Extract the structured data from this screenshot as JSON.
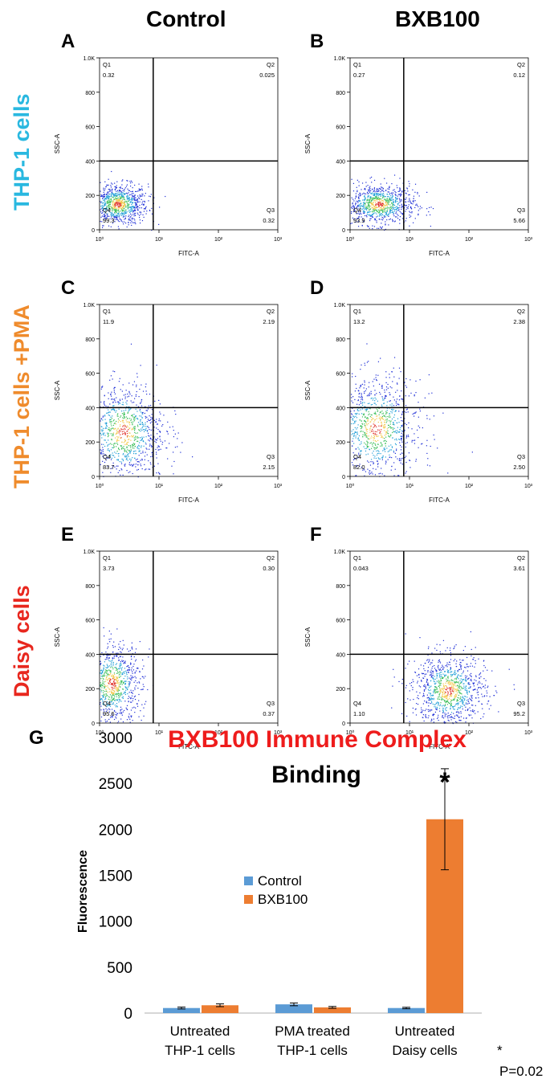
{
  "column_headers": [
    "Control",
    "BXB100"
  ],
  "row_labels": [
    {
      "text": "THP-1 cells",
      "color": "#29b8e0"
    },
    {
      "text": "THP-1 cells +PMA",
      "color": "#ef8b2c"
    },
    {
      "text": "Daisy cells",
      "color": "#e8271e"
    }
  ],
  "panel_letters": [
    "A",
    "B",
    "C",
    "D",
    "E",
    "F",
    "G"
  ],
  "annotations": {
    "star": "*",
    "pvalue": "P=0.02"
  },
  "chart_data": [
    {
      "type": "scatter",
      "panel": "A",
      "xlabel": "FITC-A",
      "ylabel": "SSC-A",
      "x_scale": "log",
      "xlim": [
        1,
        1000
      ],
      "ylim": [
        0,
        1000
      ],
      "x_ticks": [
        "10⁰",
        "10¹",
        "10²",
        "10³"
      ],
      "y_ticks": [
        "0",
        "200",
        "400",
        "600",
        "800",
        "1.0K"
      ],
      "quadrants": {
        "Q1": "0.32",
        "Q2": "0.025",
        "Q3": "0.32",
        "Q4": "99.3"
      },
      "gate": {
        "x": 8,
        "y": 400
      },
      "cluster": {
        "x_center": 2,
        "y_center": 150,
        "x_spread": 0.18,
        "y_spread": 45,
        "count": 900
      }
    },
    {
      "type": "scatter",
      "panel": "B",
      "xlabel": "FITC-A",
      "ylabel": "SSC-A",
      "x_scale": "log",
      "xlim": [
        1,
        1000
      ],
      "ylim": [
        0,
        1000
      ],
      "x_ticks": [
        "10⁰",
        "10¹",
        "10²",
        "10³"
      ],
      "y_ticks": [
        "0",
        "200",
        "400",
        "600",
        "800",
        "1.0K"
      ],
      "quadrants": {
        "Q1": "0.27",
        "Q2": "0.12",
        "Q3": "5.66",
        "Q4": "93.9"
      },
      "gate": {
        "x": 8,
        "y": 400
      },
      "cluster": {
        "x_center": 3,
        "y_center": 150,
        "x_spread": 0.22,
        "y_spread": 45,
        "count": 900
      }
    },
    {
      "type": "scatter",
      "panel": "C",
      "xlabel": "FITC-A",
      "ylabel": "SSC-A",
      "x_scale": "log",
      "xlim": [
        1,
        1000
      ],
      "ylim": [
        0,
        1000
      ],
      "x_ticks": [
        "10⁰",
        "10¹",
        "10²",
        "10³"
      ],
      "y_ticks": [
        "0",
        "200",
        "400",
        "600",
        "800",
        "1.0K"
      ],
      "quadrants": {
        "Q1": "11.9",
        "Q2": "2.19",
        "Q3": "2.15",
        "Q4": "83.7"
      },
      "gate": {
        "x": 8,
        "y": 400
      },
      "cluster": {
        "x_center": 2.5,
        "y_center": 260,
        "x_spread": 0.25,
        "y_spread": 110,
        "count": 1000
      }
    },
    {
      "type": "scatter",
      "panel": "D",
      "xlabel": "FITC-A",
      "ylabel": "SSC-A",
      "x_scale": "log",
      "xlim": [
        1,
        1000
      ],
      "ylim": [
        0,
        1000
      ],
      "x_ticks": [
        "10⁰",
        "10¹",
        "10²",
        "10³"
      ],
      "y_ticks": [
        "0",
        "200",
        "400",
        "600",
        "800",
        "1.0K"
      ],
      "quadrants": {
        "Q1": "13.2",
        "Q2": "2.38",
        "Q3": "2.50",
        "Q4": "82.0"
      },
      "gate": {
        "x": 8,
        "y": 400
      },
      "cluster": {
        "x_center": 2.7,
        "y_center": 280,
        "x_spread": 0.27,
        "y_spread": 115,
        "count": 1000
      }
    },
    {
      "type": "scatter",
      "panel": "E",
      "xlabel": "FITC-A",
      "ylabel": "SSC-A",
      "x_scale": "log",
      "xlim": [
        1,
        1000
      ],
      "ylim": [
        0,
        1000
      ],
      "x_ticks": [
        "10⁰",
        "10¹",
        "10²",
        "10³"
      ],
      "y_ticks": [
        "0",
        "200",
        "400",
        "600",
        "800",
        "1.0K"
      ],
      "quadrants": {
        "Q1": "3.73",
        "Q2": "0.30",
        "Q3": "0.37",
        "Q4": "95.6"
      },
      "gate": {
        "x": 8,
        "y": 400
      },
      "cluster": {
        "x_center": 1.6,
        "y_center": 230,
        "x_spread": 0.18,
        "y_spread": 90,
        "count": 900
      }
    },
    {
      "type": "scatter",
      "panel": "F",
      "xlabel": "FITC-A",
      "ylabel": "SSC-A",
      "x_scale": "log",
      "xlim": [
        1,
        1000
      ],
      "ylim": [
        0,
        1000
      ],
      "x_ticks": [
        "10⁰",
        "10¹",
        "10²",
        "10³"
      ],
      "y_ticks": [
        "0",
        "200",
        "400",
        "600",
        "800",
        "1.0K"
      ],
      "quadrants": {
        "Q1": "0.043",
        "Q2": "3.61",
        "Q3": "95.2",
        "Q4": "1.10"
      },
      "gate": {
        "x": 8,
        "y": 400
      },
      "cluster": {
        "x_center": 45,
        "y_center": 190,
        "x_spread": 0.22,
        "y_spread": 80,
        "count": 1000
      }
    },
    {
      "type": "bar",
      "panel": "G",
      "title": "BXB100 Immune Complex",
      "subtitle": "Binding",
      "xlabel": "",
      "ylabel": "Fluorescence",
      "ylim": [
        0,
        3000
      ],
      "y_ticks": [
        0,
        500,
        1000,
        1500,
        2000,
        2500,
        3000
      ],
      "categories": [
        [
          "Untreated",
          "THP-1 cells"
        ],
        [
          "PMA treated",
          "THP-1 cells"
        ],
        [
          "Untreated",
          "Daisy cells"
        ]
      ],
      "legend_position": "center-left",
      "series": [
        {
          "name": "Control",
          "color": "#5b9bd5",
          "values": [
            55,
            95,
            55
          ],
          "errors": [
            10,
            15,
            8
          ]
        },
        {
          "name": "BXB100",
          "color": "#ed7d31",
          "values": [
            85,
            62,
            2110
          ],
          "errors": [
            15,
            10,
            550
          ]
        }
      ],
      "significance": [
        {
          "category": 2,
          "series": 1,
          "label": "*"
        }
      ]
    }
  ]
}
